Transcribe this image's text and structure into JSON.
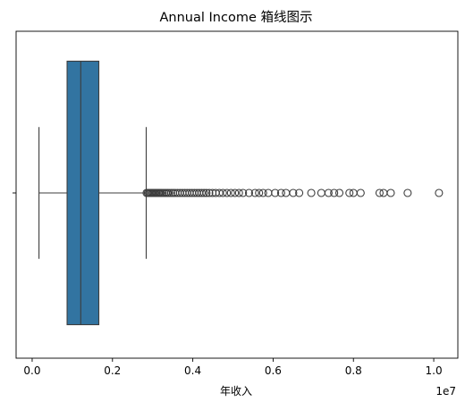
{
  "chart_data": {
    "type": "boxplot",
    "orientation": "horizontal",
    "title": "Annual Income 箱线图示",
    "xlabel": "年收入",
    "ylabel": "",
    "x_scale_label": "1e7",
    "xlim": [
      -0.04,
      1.06
    ],
    "x_ticks": [
      0.0,
      0.2,
      0.4,
      0.6,
      0.8,
      1.0
    ],
    "x_tick_labels": [
      "0.0",
      "0.2",
      "0.4",
      "0.6",
      "0.8",
      "1.0"
    ],
    "grid": false,
    "box": {
      "whisker_low": 0.017,
      "q1": 0.087,
      "median": 0.121,
      "q3": 0.166,
      "whisker_high": 0.284,
      "color": "#3274a1",
      "line_color": "#3d3d3d"
    },
    "outliers": [
      0.285,
      0.288,
      0.291,
      0.294,
      0.297,
      0.3,
      0.303,
      0.306,
      0.309,
      0.312,
      0.315,
      0.318,
      0.321,
      0.325,
      0.329,
      0.333,
      0.337,
      0.341,
      0.346,
      0.351,
      0.356,
      0.362,
      0.368,
      0.374,
      0.38,
      0.386,
      0.392,
      0.398,
      0.404,
      0.41,
      0.416,
      0.422,
      0.428,
      0.434,
      0.441,
      0.449,
      0.457,
      0.466,
      0.475,
      0.485,
      0.495,
      0.505,
      0.515,
      0.525,
      0.54,
      0.555,
      0.565,
      0.575,
      0.588,
      0.605,
      0.62,
      0.632,
      0.65,
      0.665,
      0.695,
      0.72,
      0.738,
      0.752,
      0.765,
      0.79,
      0.8,
      0.818,
      0.865,
      0.875,
      0.893,
      0.935,
      1.013
    ],
    "outlier_color": "#3d3d3d"
  }
}
